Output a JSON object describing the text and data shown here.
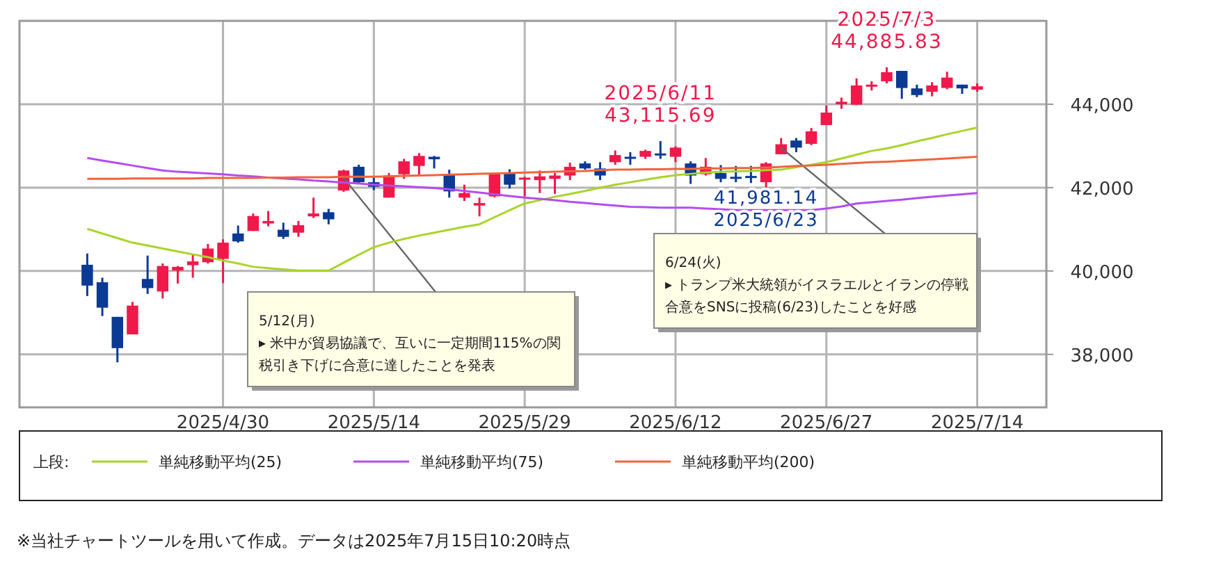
{
  "chart_data": {
    "type": "candlestick",
    "categories": [
      null,
      null,
      null,
      null,
      null,
      null,
      null,
      null,
      null,
      "2025/4/30",
      null,
      null,
      null,
      null,
      null,
      null,
      null,
      null,
      null,
      "2025/5/14",
      null,
      null,
      null,
      null,
      null,
      null,
      null,
      null,
      null,
      "2025/5/29",
      null,
      null,
      null,
      null,
      null,
      null,
      null,
      null,
      null,
      "2025/6/12",
      null,
      null,
      null,
      null,
      null,
      null,
      null,
      null,
      null,
      "2025/6/27",
      null,
      null,
      null,
      null,
      null,
      null,
      null,
      null,
      null,
      "2025/7/14"
    ],
    "ohlc": [
      [
        40150,
        40420,
        39400,
        39650
      ],
      [
        39730,
        39840,
        38920,
        39120
      ],
      [
        38900,
        38900,
        37810,
        38150
      ],
      [
        38480,
        39260,
        38480,
        39170
      ],
      [
        39810,
        40370,
        39450,
        39590
      ],
      [
        39510,
        40180,
        39340,
        40120
      ],
      [
        40010,
        40120,
        39700,
        40100
      ],
      [
        40140,
        40400,
        39840,
        40230
      ],
      [
        40210,
        40650,
        40180,
        40540
      ],
      [
        40290,
        40760,
        39710,
        40680
      ],
      [
        40900,
        41090,
        40680,
        40710
      ],
      [
        40960,
        41380,
        40960,
        41320
      ],
      [
        41140,
        41440,
        41070,
        41200
      ],
      [
        40990,
        41160,
        40770,
        40820
      ],
      [
        40920,
        41200,
        40820,
        41100
      ],
      [
        41310,
        41760,
        41270,
        41380
      ],
      [
        41410,
        41490,
        41120,
        41240
      ],
      [
        41930,
        42430,
        41900,
        42410
      ],
      [
        42500,
        42550,
        42100,
        42130
      ],
      [
        42130,
        42240,
        41940,
        42020
      ],
      [
        41760,
        42350,
        41760,
        42290
      ],
      [
        42320,
        42690,
        42210,
        42630
      ],
      [
        42520,
        42830,
        42290,
        42760
      ],
      [
        42740,
        42760,
        42460,
        42680
      ],
      [
        42330,
        42430,
        41760,
        41910
      ],
      [
        41760,
        42070,
        41680,
        41870
      ],
      [
        41570,
        41760,
        41310,
        41630
      ],
      [
        41790,
        42350,
        41770,
        42350
      ],
      [
        42350,
        42440,
        41980,
        42070
      ],
      [
        42210,
        42260,
        41790,
        42240
      ],
      [
        42180,
        42410,
        41870,
        42270
      ],
      [
        42210,
        42350,
        41850,
        42290
      ],
      [
        42290,
        42600,
        42180,
        42500
      ],
      [
        42580,
        42630,
        42430,
        42460
      ],
      [
        42460,
        42610,
        42180,
        42290
      ],
      [
        42610,
        42890,
        42550,
        42780
      ],
      [
        42740,
        42850,
        42550,
        42710
      ],
      [
        42740,
        42910,
        42690,
        42880
      ],
      [
        42820,
        43115.69,
        42690,
        42780
      ],
      [
        42740,
        42990,
        42610,
        42960
      ],
      [
        42580,
        42630,
        42090,
        42290
      ],
      [
        42320,
        42710,
        42290,
        42500
      ],
      [
        42350,
        42540,
        42130,
        42210
      ],
      [
        42260,
        42520,
        42130,
        42220
      ],
      [
        42280,
        42520,
        42110,
        42240
      ],
      [
        42130,
        42610,
        41981.14,
        42580
      ],
      [
        42800,
        43190,
        42800,
        43040
      ],
      [
        43130,
        43190,
        42850,
        42960
      ],
      [
        43050,
        43430,
        43020,
        43350
      ],
      [
        43500,
        43970,
        43500,
        43800
      ],
      [
        44000,
        44160,
        43890,
        44060
      ],
      [
        43990,
        44620,
        43980,
        44450
      ],
      [
        44430,
        44550,
        44330,
        44470
      ],
      [
        44550,
        44885.83,
        44500,
        44770
      ],
      [
        44800,
        44800,
        44130,
        44390
      ],
      [
        44380,
        44470,
        44170,
        44220
      ],
      [
        44300,
        44530,
        44190,
        44450
      ],
      [
        44390,
        44780,
        44360,
        44640
      ],
      [
        44470,
        44470,
        44250,
        44380
      ],
      [
        44350,
        44500,
        44300,
        44430
      ]
    ],
    "colors": [
      "#0a3a94",
      "#0a3a94",
      "#0a3a94",
      "#f0194a",
      "#0a3a94",
      "#f0194a",
      "#f0194a",
      "#f0194a",
      "#f0194a",
      "#f0194a",
      "#0a3a94",
      "#f0194a",
      "#f0194a",
      "#0a3a94",
      "#f0194a",
      "#f0194a",
      "#0a3a94",
      "#f0194a",
      "#0a3a94",
      "#0a3a94",
      "#f0194a",
      "#f0194a",
      "#f0194a",
      "#0a3a94",
      "#0a3a94",
      "#f0194a",
      "#f0194a",
      "#f0194a",
      "#0a3a94",
      "#f0194a",
      "#f0194a",
      "#f0194a",
      "#f0194a",
      "#0a3a94",
      "#0a3a94",
      "#f0194a",
      "#0a3a94",
      "#f0194a",
      "#0a3a94",
      "#f0194a",
      "#0a3a94",
      "#f0194a",
      "#0a3a94",
      "#0a3a94",
      "#0a3a94",
      "#f0194a",
      "#f0194a",
      "#0a3a94",
      "#f0194a",
      "#f0194a",
      "#f0194a",
      "#f0194a",
      "#f0194a",
      "#f0194a",
      "#0a3a94",
      "#0a3a94",
      "#f0194a",
      "#f0194a",
      "#0a3a94",
      "#f0194a"
    ],
    "series": [
      {
        "type": "line",
        "name": "単純移動平均(25)",
        "color": "#a8d42a",
        "values": [
          41010,
          40900,
          40790,
          40680,
          40610,
          40540,
          40470,
          40400,
          40330,
          40250,
          40180,
          40100,
          40070,
          40040,
          40010,
          40010,
          40010,
          40200,
          40390,
          40570,
          40680,
          40770,
          40850,
          40920,
          40990,
          41060,
          41120,
          41290,
          41460,
          41620,
          41700,
          41780,
          41850,
          41920,
          42000,
          42070,
          42130,
          42190,
          42250,
          42300,
          42330,
          42360,
          42380,
          42390,
          42400,
          42420,
          42430,
          42490,
          42550,
          42610,
          42700,
          42790,
          42880,
          42940,
          43020,
          43110,
          43190,
          43280,
          43360,
          43440
        ]
      },
      {
        "type": "line",
        "name": "単純移動平均(75)",
        "color": "#b44cf0",
        "values": [
          42710,
          42650,
          42590,
          42530,
          42470,
          42410,
          42380,
          42360,
          42340,
          42320,
          42290,
          42270,
          42240,
          42220,
          42200,
          42170,
          42150,
          42120,
          42100,
          42070,
          42050,
          42030,
          42010,
          41990,
          41960,
          41920,
          41880,
          41840,
          41800,
          41760,
          41730,
          41700,
          41660,
          41630,
          41600,
          41570,
          41540,
          41530,
          41520,
          41520,
          41520,
          41500,
          41480,
          41460,
          41460,
          41460,
          41460,
          41460,
          41460,
          41500,
          41550,
          41620,
          41650,
          41680,
          41710,
          41750,
          41780,
          41810,
          41840,
          41870
        ]
      },
      {
        "type": "line",
        "name": "単純移動平均(200)",
        "color": "#f0643c",
        "values": [
          42210,
          42210,
          42210,
          42220,
          42220,
          42220,
          42220,
          42220,
          42230,
          42230,
          42230,
          42230,
          42240,
          42240,
          42250,
          42250,
          42250,
          42260,
          42260,
          42260,
          42270,
          42280,
          42290,
          42300,
          42310,
          42320,
          42330,
          42340,
          42350,
          42360,
          42370,
          42380,
          42390,
          42400,
          42420,
          42430,
          42430,
          42440,
          42440,
          42450,
          42450,
          42460,
          42460,
          42470,
          42470,
          42480,
          42500,
          42520,
          42530,
          42550,
          42570,
          42590,
          42610,
          42620,
          42640,
          42660,
          42680,
          42700,
          42720,
          42740
        ]
      }
    ],
    "ylim": [
      36730,
      46000
    ],
    "yticks": [
      {
        "value": 38000,
        "label": "38,000"
      },
      {
        "value": 40000,
        "label": "40,000"
      },
      {
        "value": 42000,
        "label": "42,000"
      },
      {
        "value": 44000,
        "label": "44,000"
      }
    ],
    "grid": true,
    "legend": "bottom",
    "legend_title": "上段:",
    "annotations": [
      {
        "text": "2025/6/11\n43,115.69",
        "y": 43115.69
      },
      {
        "text": "2025/7/3\n44,885.83",
        "y": 44885.83
      },
      {
        "text": "41,981.14\n2025/6/23",
        "y": 41981.14
      },
      "5/12(月)\n▸ 米中が貿易協議で、互いに一定期間115%の関税引き下げに合意に達したことを発表",
      "6/24(火)\n▸ トランプ米大統領がイスラエルとイランの停戦合意をSNSに投稿(6/23)したことを好感",
      "※当社チャートツールを用いて作成。データは2025年7月15日10:20時点"
    ]
  }
}
